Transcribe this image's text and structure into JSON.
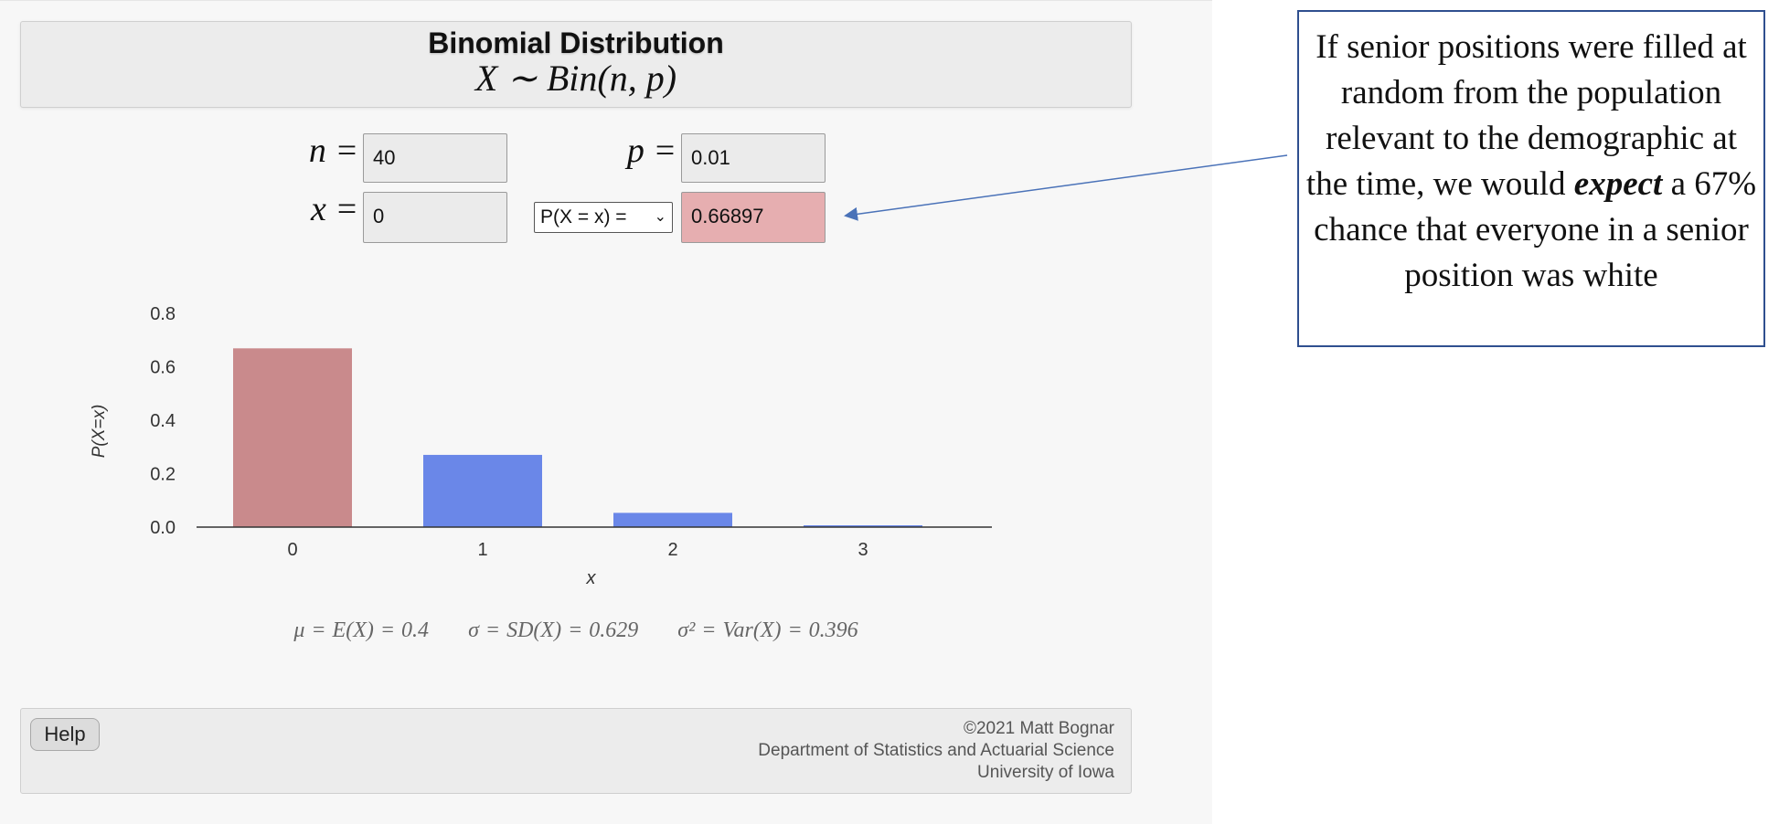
{
  "header": {
    "title": "Binomial Distribution",
    "formula": "X ∼ Bin(n, p)"
  },
  "inputs": {
    "n_label": "n =",
    "n_value": "40",
    "p_label": "p =",
    "p_value": "0.01",
    "x_label": "x =",
    "x_value": "0",
    "prob_select": "P(X = x) =",
    "prob_result": "0.66897"
  },
  "chart_data": {
    "type": "bar",
    "categories": [
      "0",
      "1",
      "2",
      "3"
    ],
    "values": [
      0.669,
      0.2703,
      0.0533,
      0.0068
    ],
    "highlight_index": 0,
    "highlight_color": "#c98a8c",
    "bar_color": "#6a87e8",
    "xlabel": "x",
    "ylabel": "P(X=x)",
    "ylim": [
      0,
      0.8
    ],
    "yticks": [
      "0.0",
      "0.2",
      "0.4",
      "0.6",
      "0.8"
    ]
  },
  "stats": {
    "mean": "μ = E(X) = 0.4",
    "sd": "σ = SD(X) = 0.629",
    "var": "σ² = Var(X) = 0.396"
  },
  "footer": {
    "help_label": "Help",
    "copyright": "©2021 Matt Bognar",
    "department": "Department of Statistics and Actuarial Science",
    "university": "University of Iowa"
  },
  "callout": {
    "text_before": "If senior positions were filled at random from the population relevant to the demographic at the time, we would ",
    "emphasis": "expect",
    "text_after": " a 67% chance that everyone in a senior position was white"
  }
}
